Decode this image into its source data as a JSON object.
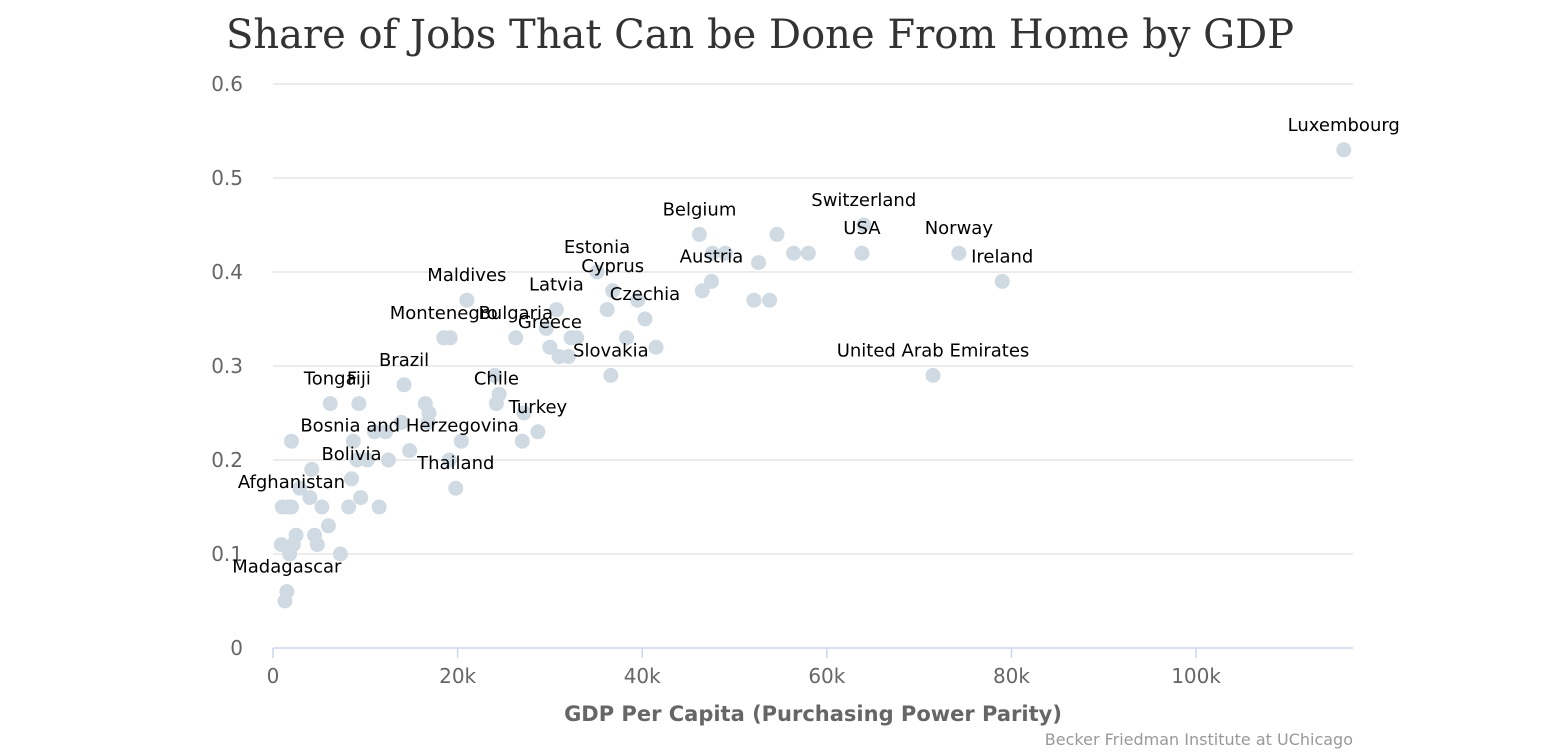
{
  "chart_data": {
    "type": "scatter",
    "title": "Share of Jobs That Can be Done From Home by GDP",
    "xlabel": "GDP Per Capita (Purchasing Power Parity)",
    "ylabel": "",
    "credit": "Becker Friedman Institute at UChicago",
    "xlim": [
      0,
      117000
    ],
    "ylim": [
      0,
      0.6
    ],
    "x_ticks": [
      0,
      20000,
      40000,
      60000,
      80000,
      100000
    ],
    "x_tick_labels": [
      "0",
      "20k",
      "40k",
      "60k",
      "80k",
      "100k"
    ],
    "y_ticks": [
      0,
      0.1,
      0.2,
      0.3,
      0.4,
      0.5,
      0.6
    ],
    "y_tick_labels": [
      "0",
      "0.1",
      "0.2",
      "0.3",
      "0.4",
      "0.5",
      "0.6"
    ],
    "grid": true,
    "point_color": "#d0dae3",
    "points": [
      {
        "x": 116000,
        "y": 0.53,
        "label": "Luxembourg"
      },
      {
        "x": 64000,
        "y": 0.45,
        "label": "Switzerland"
      },
      {
        "x": 63800,
        "y": 0.42,
        "label": "USA"
      },
      {
        "x": 74300,
        "y": 0.42,
        "label": "Norway"
      },
      {
        "x": 79000,
        "y": 0.39,
        "label": "Ireland"
      },
      {
        "x": 71500,
        "y": 0.29,
        "label": "United Arab Emirates"
      },
      {
        "x": 46200,
        "y": 0.44,
        "label": "Belgium"
      },
      {
        "x": 47500,
        "y": 0.39,
        "label": "Austria"
      },
      {
        "x": 35100,
        "y": 0.4,
        "label": "Estonia"
      },
      {
        "x": 36800,
        "y": 0.38,
        "label": "Cyprus"
      },
      {
        "x": 30700,
        "y": 0.36,
        "label": "Latvia"
      },
      {
        "x": 40300,
        "y": 0.35,
        "label": "Czechia"
      },
      {
        "x": 30000,
        "y": 0.32,
        "label": "Greece"
      },
      {
        "x": 26300,
        "y": 0.33,
        "label": "Bulgaria"
      },
      {
        "x": 36600,
        "y": 0.29,
        "label": "Slovakia"
      },
      {
        "x": 21000,
        "y": 0.37,
        "label": "Maldives"
      },
      {
        "x": 18500,
        "y": 0.33,
        "label": "Montenegro"
      },
      {
        "x": 24200,
        "y": 0.26,
        "label": "Chile"
      },
      {
        "x": 28700,
        "y": 0.23,
        "label": "Turkey"
      },
      {
        "x": 14200,
        "y": 0.28,
        "label": "Brazil"
      },
      {
        "x": 6200,
        "y": 0.26,
        "label": "Tonga"
      },
      {
        "x": 9300,
        "y": 0.26,
        "label": "Fiji"
      },
      {
        "x": 14800,
        "y": 0.21,
        "label": "Bosnia and Herzegovina"
      },
      {
        "x": 19800,
        "y": 0.17,
        "label": "Thailand"
      },
      {
        "x": 8500,
        "y": 0.18,
        "label": "Bolivia"
      },
      {
        "x": 2000,
        "y": 0.15,
        "label": "Afghanistan"
      },
      {
        "x": 1500,
        "y": 0.06,
        "label": "Madagascar"
      },
      {
        "x": 54600,
        "y": 0.44,
        "label": ""
      },
      {
        "x": 47600,
        "y": 0.42,
        "label": ""
      },
      {
        "x": 49000,
        "y": 0.42,
        "label": ""
      },
      {
        "x": 52600,
        "y": 0.41,
        "label": ""
      },
      {
        "x": 56400,
        "y": 0.42,
        "label": ""
      },
      {
        "x": 58000,
        "y": 0.42,
        "label": ""
      },
      {
        "x": 46500,
        "y": 0.38,
        "label": ""
      },
      {
        "x": 52100,
        "y": 0.37,
        "label": ""
      },
      {
        "x": 53800,
        "y": 0.37,
        "label": ""
      },
      {
        "x": 39500,
        "y": 0.37,
        "label": ""
      },
      {
        "x": 36200,
        "y": 0.36,
        "label": ""
      },
      {
        "x": 32300,
        "y": 0.33,
        "label": ""
      },
      {
        "x": 32900,
        "y": 0.33,
        "label": ""
      },
      {
        "x": 29600,
        "y": 0.34,
        "label": ""
      },
      {
        "x": 38300,
        "y": 0.33,
        "label": ""
      },
      {
        "x": 41500,
        "y": 0.32,
        "label": ""
      },
      {
        "x": 31000,
        "y": 0.31,
        "label": ""
      },
      {
        "x": 32000,
        "y": 0.31,
        "label": ""
      },
      {
        "x": 19200,
        "y": 0.33,
        "label": ""
      },
      {
        "x": 24000,
        "y": 0.29,
        "label": ""
      },
      {
        "x": 24500,
        "y": 0.27,
        "label": ""
      },
      {
        "x": 27200,
        "y": 0.25,
        "label": ""
      },
      {
        "x": 27000,
        "y": 0.22,
        "label": ""
      },
      {
        "x": 16500,
        "y": 0.26,
        "label": ""
      },
      {
        "x": 16900,
        "y": 0.25,
        "label": ""
      },
      {
        "x": 16800,
        "y": 0.24,
        "label": ""
      },
      {
        "x": 13900,
        "y": 0.24,
        "label": ""
      },
      {
        "x": 11000,
        "y": 0.23,
        "label": ""
      },
      {
        "x": 12200,
        "y": 0.23,
        "label": ""
      },
      {
        "x": 8700,
        "y": 0.22,
        "label": ""
      },
      {
        "x": 20400,
        "y": 0.22,
        "label": ""
      },
      {
        "x": 2000,
        "y": 0.22,
        "label": ""
      },
      {
        "x": 19100,
        "y": 0.2,
        "label": ""
      },
      {
        "x": 9100,
        "y": 0.2,
        "label": ""
      },
      {
        "x": 10200,
        "y": 0.2,
        "label": ""
      },
      {
        "x": 12500,
        "y": 0.2,
        "label": ""
      },
      {
        "x": 4200,
        "y": 0.19,
        "label": ""
      },
      {
        "x": 2900,
        "y": 0.17,
        "label": ""
      },
      {
        "x": 4000,
        "y": 0.16,
        "label": ""
      },
      {
        "x": 9500,
        "y": 0.16,
        "label": ""
      },
      {
        "x": 1000,
        "y": 0.15,
        "label": ""
      },
      {
        "x": 1700,
        "y": 0.15,
        "label": ""
      },
      {
        "x": 5300,
        "y": 0.15,
        "label": ""
      },
      {
        "x": 8200,
        "y": 0.15,
        "label": ""
      },
      {
        "x": 11500,
        "y": 0.15,
        "label": ""
      },
      {
        "x": 6000,
        "y": 0.13,
        "label": ""
      },
      {
        "x": 2500,
        "y": 0.12,
        "label": ""
      },
      {
        "x": 4500,
        "y": 0.12,
        "label": ""
      },
      {
        "x": 900,
        "y": 0.11,
        "label": ""
      },
      {
        "x": 2200,
        "y": 0.11,
        "label": ""
      },
      {
        "x": 4800,
        "y": 0.11,
        "label": ""
      },
      {
        "x": 1800,
        "y": 0.1,
        "label": ""
      },
      {
        "x": 7300,
        "y": 0.1,
        "label": ""
      },
      {
        "x": 1300,
        "y": 0.05,
        "label": ""
      }
    ]
  }
}
